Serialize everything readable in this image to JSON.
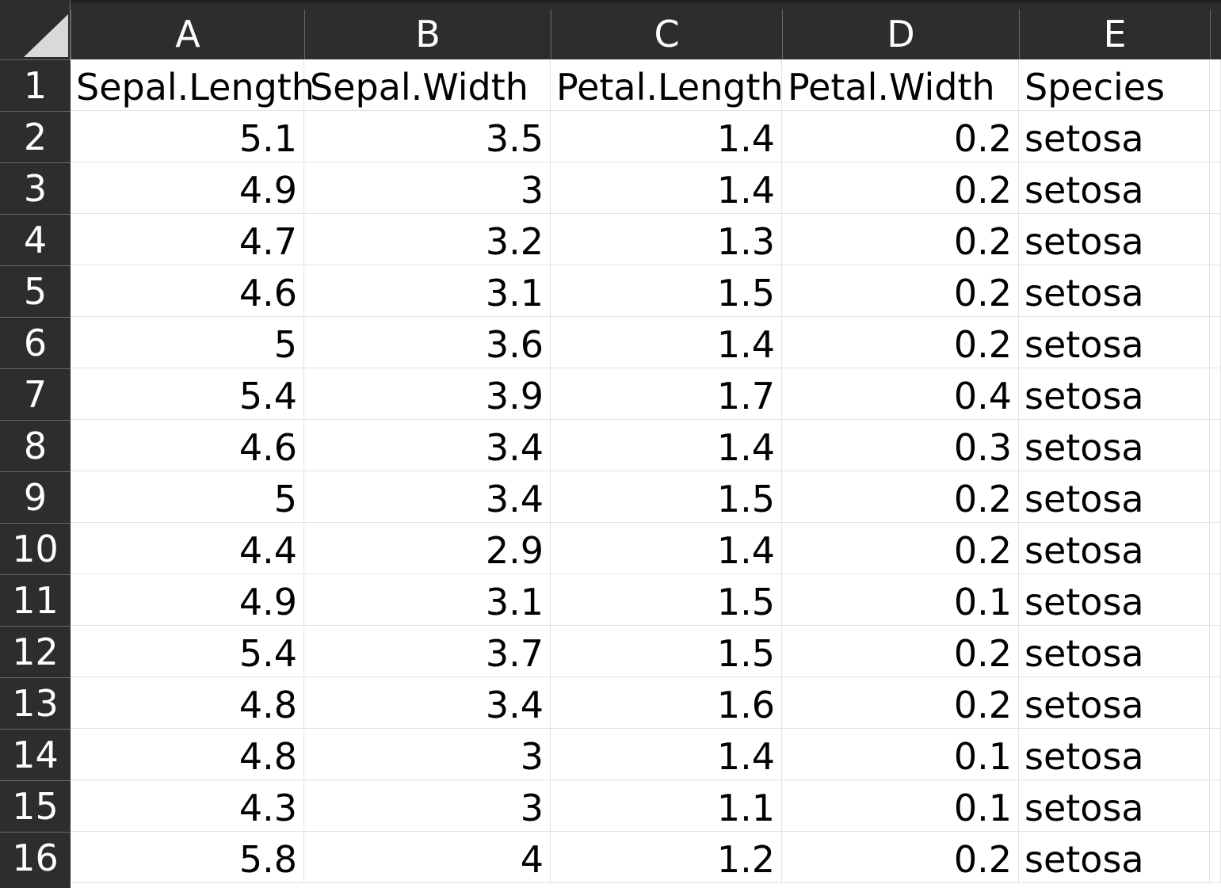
{
  "spreadsheet": {
    "columns": [
      "A",
      "B",
      "C",
      "D",
      "E"
    ],
    "rows": [
      {
        "n": "1",
        "cells": [
          "Sepal.Length",
          "Sepal.Width",
          "Petal.Length",
          "Petal.Width",
          "Species"
        ]
      },
      {
        "n": "2",
        "cells": [
          "5.1",
          "3.5",
          "1.4",
          "0.2",
          "setosa"
        ]
      },
      {
        "n": "3",
        "cells": [
          "4.9",
          "3",
          "1.4",
          "0.2",
          "setosa"
        ]
      },
      {
        "n": "4",
        "cells": [
          "4.7",
          "3.2",
          "1.3",
          "0.2",
          "setosa"
        ]
      },
      {
        "n": "5",
        "cells": [
          "4.6",
          "3.1",
          "1.5",
          "0.2",
          "setosa"
        ]
      },
      {
        "n": "6",
        "cells": [
          "5",
          "3.6",
          "1.4",
          "0.2",
          "setosa"
        ]
      },
      {
        "n": "7",
        "cells": [
          "5.4",
          "3.9",
          "1.7",
          "0.4",
          "setosa"
        ]
      },
      {
        "n": "8",
        "cells": [
          "4.6",
          "3.4",
          "1.4",
          "0.3",
          "setosa"
        ]
      },
      {
        "n": "9",
        "cells": [
          "5",
          "3.4",
          "1.5",
          "0.2",
          "setosa"
        ]
      },
      {
        "n": "10",
        "cells": [
          "4.4",
          "2.9",
          "1.4",
          "0.2",
          "setosa"
        ]
      },
      {
        "n": "11",
        "cells": [
          "4.9",
          "3.1",
          "1.5",
          "0.1",
          "setosa"
        ]
      },
      {
        "n": "12",
        "cells": [
          "5.4",
          "3.7",
          "1.5",
          "0.2",
          "setosa"
        ]
      },
      {
        "n": "13",
        "cells": [
          "4.8",
          "3.4",
          "1.6",
          "0.2",
          "setosa"
        ]
      },
      {
        "n": "14",
        "cells": [
          "4.8",
          "3",
          "1.4",
          "0.1",
          "setosa"
        ]
      },
      {
        "n": "15",
        "cells": [
          "4.3",
          "3",
          "1.1",
          "0.1",
          "setosa"
        ]
      },
      {
        "n": "16",
        "cells": [
          "5.8",
          "4",
          "1.2",
          "0.2",
          "setosa"
        ]
      }
    ]
  },
  "icons": {
    "select_all": "select-all-triangle-icon"
  },
  "colors": {
    "header_bg": "#2d2d2d",
    "header_text": "#ffffff",
    "gridline": "#e3e3e3"
  }
}
